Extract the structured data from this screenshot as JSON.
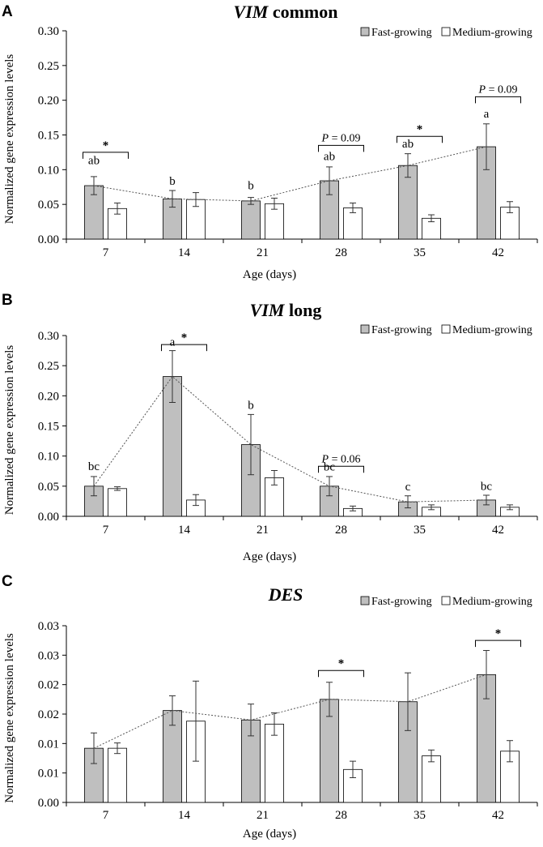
{
  "chart_data": [
    {
      "type": "bar",
      "panel": "A",
      "title_italic": "VIM",
      "title_rest": " common",
      "xlabel": "Age (days)",
      "ylabel": "Normalized gene expression levels",
      "categories": [
        "7",
        "14",
        "21",
        "28",
        "35",
        "42"
      ],
      "ylim": [
        0,
        0.3
      ],
      "yticks": [
        "0.00",
        "0.05",
        "0.10",
        "0.15",
        "0.20",
        "0.25",
        "0.30"
      ],
      "legend": [
        "Fast-growing",
        "Medium-growing"
      ],
      "series": [
        {
          "name": "Fast-growing",
          "color": "#bfbfbf",
          "values": [
            0.077,
            0.058,
            0.055,
            0.084,
            0.106,
            0.133
          ],
          "errors": [
            0.013,
            0.012,
            0.005,
            0.02,
            0.017,
            0.033
          ]
        },
        {
          "name": "Medium-growing",
          "color": "#ffffff",
          "values": [
            0.044,
            0.057,
            0.051,
            0.045,
            0.03,
            0.046
          ],
          "errors": [
            0.008,
            0.01,
            0.008,
            0.007,
            0.005,
            0.008
          ]
        }
      ],
      "letters": [
        "ab",
        "b",
        "b",
        "ab",
        "ab",
        "a"
      ],
      "brackets": [
        {
          "index": 0,
          "label": "*",
          "level": 0.125
        },
        {
          "index": 3,
          "label": "P = 0.09",
          "level": 0.135
        },
        {
          "index": 4,
          "label": "*",
          "level": 0.148
        },
        {
          "index": 5,
          "label": "P = 0.09",
          "level": 0.205
        }
      ]
    },
    {
      "type": "bar",
      "panel": "B",
      "title_italic": "VIM",
      "title_rest": " long",
      "xlabel": "Age (days)",
      "ylabel": "Normalized gene expression levels",
      "categories": [
        "7",
        "14",
        "21",
        "28",
        "35",
        "42"
      ],
      "ylim": [
        0,
        0.3
      ],
      "yticks": [
        "0.00",
        "0.05",
        "0.10",
        "0.15",
        "0.20",
        "0.25",
        "0.30"
      ],
      "legend": [
        "Fast-growing",
        "Medium-growing"
      ],
      "series": [
        {
          "name": "Fast-growing",
          "color": "#bfbfbf",
          "values": [
            0.05,
            0.232,
            0.119,
            0.05,
            0.024,
            0.027
          ],
          "errors": [
            0.016,
            0.043,
            0.05,
            0.016,
            0.01,
            0.008
          ]
        },
        {
          "name": "Medium-growing",
          "color": "#ffffff",
          "values": [
            0.046,
            0.027,
            0.064,
            0.013,
            0.015,
            0.015
          ],
          "errors": [
            0.003,
            0.009,
            0.012,
            0.004,
            0.004,
            0.004
          ]
        }
      ],
      "letters": [
        "bc",
        "a",
        "b",
        "bc",
        "c",
        "bc"
      ],
      "brackets": [
        {
          "index": 1,
          "label": "*",
          "level": 0.285
        },
        {
          "index": 3,
          "label": "P = 0.06",
          "level": 0.083
        }
      ]
    },
    {
      "type": "bar",
      "panel": "C",
      "title_italic": "DES",
      "title_rest": "",
      "xlabel": "Age (days)",
      "ylabel": "Normalized gene expression levels",
      "categories": [
        "7",
        "14",
        "21",
        "28",
        "35",
        "42"
      ],
      "ylim": [
        0,
        0.03
      ],
      "yticks": [
        "0.00",
        "0.01",
        "0.01",
        "0.02",
        "0.02",
        "0.03",
        "0.03"
      ],
      "legend": [
        "Fast-growing",
        "Medium-growing"
      ],
      "series": [
        {
          "name": "Fast-growing",
          "color": "#bfbfbf",
          "values": [
            0.0092,
            0.0156,
            0.014,
            0.0175,
            0.0171,
            0.0217
          ],
          "errors": [
            0.0026,
            0.0025,
            0.0027,
            0.0029,
            0.0049,
            0.0041
          ]
        },
        {
          "name": "Medium-growing",
          "color": "#ffffff",
          "values": [
            0.0092,
            0.0138,
            0.0133,
            0.0056,
            0.0079,
            0.0087
          ],
          "errors": [
            0.0009,
            0.0068,
            0.0019,
            0.0014,
            0.001,
            0.0018
          ]
        }
      ],
      "letters": [
        "",
        "",
        "",
        "",
        "",
        ""
      ],
      "brackets": [
        {
          "index": 3,
          "label": "*",
          "level": 0.0224
        },
        {
          "index": 5,
          "label": "*",
          "level": 0.0275
        }
      ]
    }
  ]
}
